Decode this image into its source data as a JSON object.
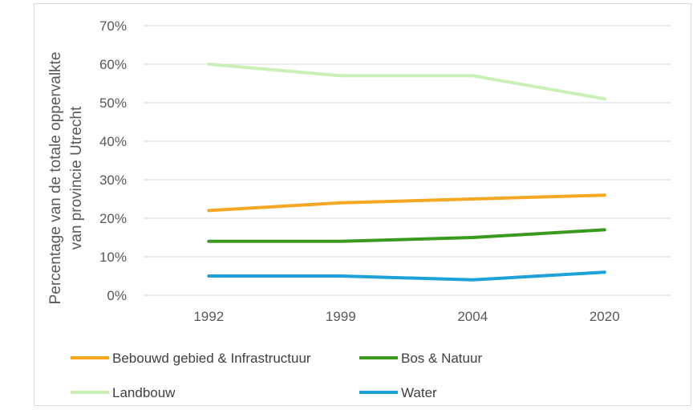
{
  "chart_data": {
    "type": "line",
    "categories": [
      "1992",
      "1999",
      "2004",
      "2020"
    ],
    "ylabel_lines": [
      "Percentage van de totale oppervalkte",
      "van provincie Utrecht"
    ],
    "ylim": [
      0,
      70
    ],
    "yticks": [
      "0%",
      "10%",
      "20%",
      "30%",
      "40%",
      "50%",
      "60%",
      "70%"
    ],
    "ytick_values": [
      0,
      10,
      20,
      30,
      40,
      50,
      60,
      70
    ],
    "grid": "horizontal",
    "legend_position": "bottom",
    "series": [
      {
        "name": "Bebouwd gebied & Infrastructuur",
        "color": "#f5a623",
        "values": [
          22,
          24,
          25,
          26
        ]
      },
      {
        "name": "Bos & Natuur",
        "color": "#3a9a1e",
        "values": [
          14,
          14,
          15,
          17
        ]
      },
      {
        "name": "Landbouw",
        "color": "#c9f0b6",
        "values": [
          60,
          57,
          57,
          51
        ]
      },
      {
        "name": "Water",
        "color": "#1ea1d8",
        "values": [
          5,
          5,
          4,
          6
        ]
      }
    ]
  }
}
